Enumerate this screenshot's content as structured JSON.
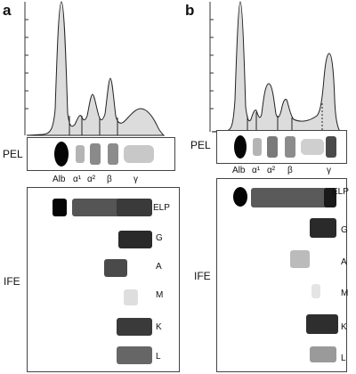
{
  "panels": [
    {
      "id": "a",
      "label": "a",
      "pel_label": "PEL",
      "ife_label": "IFE",
      "fractions": [
        "Alb",
        "α¹",
        "α²",
        "β",
        "γ"
      ],
      "ife_lanes": [
        "ELP",
        "G",
        "A",
        "M",
        "K",
        "L"
      ]
    },
    {
      "id": "b",
      "label": "b",
      "pel_label": "PEL",
      "ife_label": "IFE",
      "fractions": [
        "Alb",
        "α¹",
        "α²",
        "β",
        "γ"
      ],
      "ife_lanes": [
        "ELP",
        "G",
        "A",
        "M",
        "K",
        "L"
      ]
    }
  ],
  "colors": {
    "band": "#0a0a0a",
    "curve_fill": "#dcdcdc",
    "frame": "#444444"
  }
}
